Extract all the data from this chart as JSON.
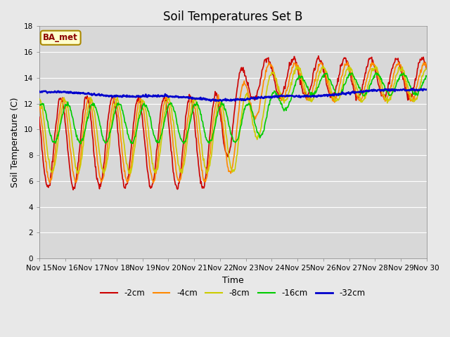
{
  "title": "Soil Temperatures Set B",
  "xlabel": "Time",
  "ylabel": "Soil Temperature (C)",
  "ylim": [
    0,
    18
  ],
  "xlim": [
    0,
    360
  ],
  "tick_labels": [
    "Nov 15",
    "Nov 16",
    "Nov 17",
    "Nov 18",
    "Nov 19",
    "Nov 20",
    "Nov 21",
    "Nov 22",
    "Nov 23",
    "Nov 24",
    "Nov 25",
    "Nov 26",
    "Nov 27",
    "Nov 28",
    "Nov 29",
    "Nov 30"
  ],
  "yticks": [
    0,
    2,
    4,
    6,
    8,
    10,
    12,
    14,
    16,
    18
  ],
  "legend_entries": [
    "-2cm",
    "-4cm",
    "-8cm",
    "-16cm",
    "-32cm"
  ],
  "line_colors": [
    "#cc0000",
    "#ff8800",
    "#cccc00",
    "#00cc00",
    "#0000cc"
  ],
  "line_widths": [
    1.2,
    1.2,
    1.2,
    1.2,
    1.8
  ],
  "annotation_text": "BA_met",
  "fig_bg_color": "#e8e8e8",
  "plot_bg_color": "#d8d8d8",
  "grid_color": "#ffffff",
  "title_fontsize": 12,
  "axis_fontsize": 9,
  "tick_fontsize": 7.5
}
